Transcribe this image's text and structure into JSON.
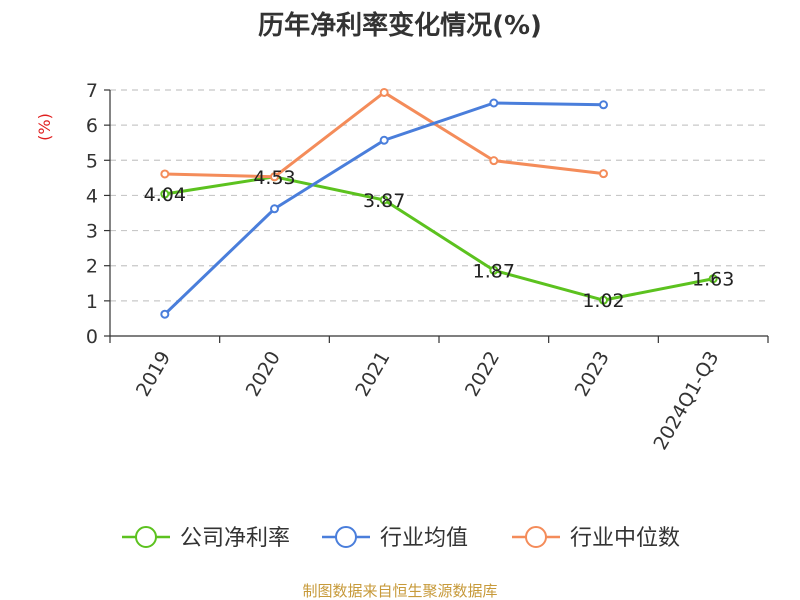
{
  "chart_data": {
    "type": "line",
    "title": "历年净利率变化情况(%)",
    "ylabel": "(%)",
    "xlabel": "",
    "categories": [
      "2019",
      "2020",
      "2021",
      "2022",
      "2023",
      "2024Q1-Q3"
    ],
    "ylim": [
      0,
      7
    ],
    "yticks": [
      "0",
      "1",
      "2",
      "3",
      "4",
      "5",
      "6",
      "7"
    ],
    "grid": true,
    "legend_position": "bottom",
    "series": [
      {
        "name": "公司净利率",
        "color": "#5cc21f",
        "values": [
          4.04,
          4.53,
          3.87,
          1.87,
          1.02,
          1.63
        ],
        "labels": [
          "4.04",
          "4.53",
          "3.87",
          "1.87",
          "1.02",
          "1.63"
        ]
      },
      {
        "name": "行业均值",
        "color": "#4a7edb",
        "values": [
          0.62,
          3.62,
          5.57,
          6.63,
          6.58,
          null
        ]
      },
      {
        "name": "行业中位数",
        "color": "#f48c5a",
        "values": [
          4.61,
          4.53,
          6.93,
          4.99,
          4.62,
          null
        ]
      }
    ]
  },
  "source_text": "制图数据来自恒生聚源数据库"
}
